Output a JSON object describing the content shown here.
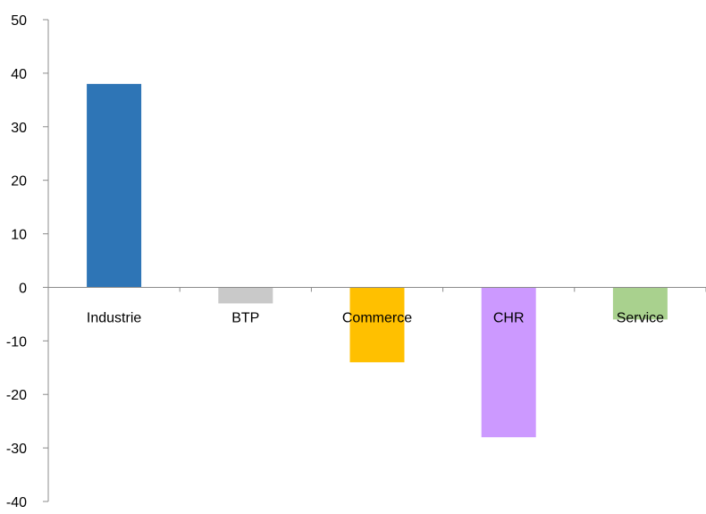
{
  "chart_data": {
    "type": "bar",
    "title": "",
    "xlabel": "",
    "ylabel": "",
    "categories": [
      "Industrie",
      "BTP",
      "Commerce",
      "CHR",
      "Service"
    ],
    "values": [
      38,
      -3,
      -14,
      -28,
      -6
    ],
    "colors": [
      "#2e75b6",
      "#c9c9c9",
      "#ffc000",
      "#cc99ff",
      "#a9d18e"
    ],
    "ylim": [
      -40,
      50
    ],
    "yticks": [
      "50",
      "40",
      "30",
      "20",
      "10",
      "0",
      "-10",
      "-20",
      "-30",
      "-40"
    ],
    "grid": false,
    "legend": "none"
  }
}
